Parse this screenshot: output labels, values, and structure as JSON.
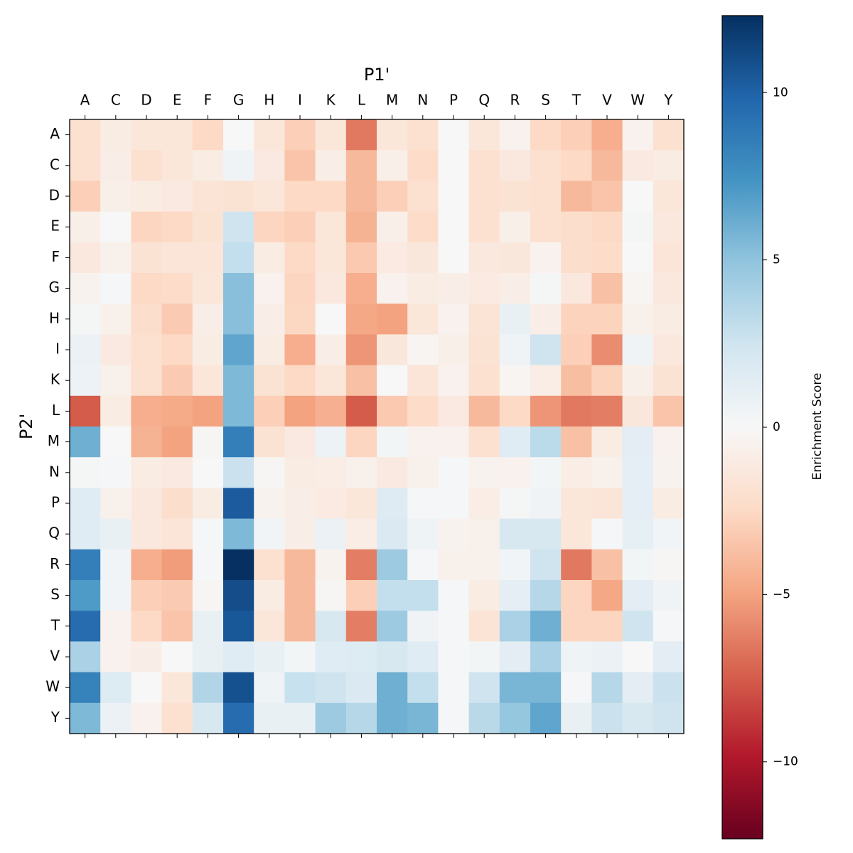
{
  "chart_data": {
    "type": "heatmap",
    "x_label": "P1'",
    "y_label": "P2'",
    "colorbar_label": "Enrichment Score",
    "colormap": "RdBu",
    "x_categories": [
      "A",
      "C",
      "D",
      "E",
      "F",
      "G",
      "H",
      "I",
      "K",
      "L",
      "M",
      "N",
      "P",
      "Q",
      "R",
      "S",
      "T",
      "V",
      "W",
      "Y"
    ],
    "y_categories": [
      "A",
      "C",
      "D",
      "E",
      "F",
      "G",
      "H",
      "I",
      "K",
      "L",
      "M",
      "N",
      "P",
      "Q",
      "R",
      "S",
      "T",
      "V",
      "W",
      "Y"
    ],
    "values": [
      [
        -2,
        -1,
        -1.5,
        -1.5,
        -2.5,
        0,
        -1.5,
        -3,
        -1.5,
        -6.5,
        -1.5,
        -2,
        0,
        -1.5,
        -0.5,
        -2.5,
        -3,
        -4.5,
        -0.5,
        -2
      ],
      [
        -2,
        -0.8,
        -2,
        -1.5,
        -1,
        0.5,
        -1.2,
        -3.5,
        -0.8,
        -4,
        -0.7,
        -2.3,
        0,
        -2,
        -1.3,
        -2,
        -2.5,
        -4,
        -1.2,
        -1
      ],
      [
        -3,
        -0.7,
        -1,
        -1.2,
        -1.7,
        -1.8,
        -1.5,
        -2.5,
        -2.5,
        -4,
        -3,
        -2,
        0,
        -2,
        -1.8,
        -2,
        -4,
        -3.5,
        0,
        -1.5
      ],
      [
        -0.7,
        0,
        -2.7,
        -2.5,
        -1.8,
        2.5,
        -2.7,
        -3,
        -1.5,
        -4.3,
        -0.7,
        -2.3,
        0,
        -2,
        -0.7,
        -2,
        -2.2,
        -2.5,
        0.2,
        -1.3
      ],
      [
        -1.3,
        -0.6,
        -1.8,
        -1.6,
        -1.6,
        3,
        -1,
        -2.5,
        -1.5,
        -3.3,
        -1.1,
        -1.4,
        0,
        -1.3,
        -1.4,
        -0.5,
        -2.2,
        -2.3,
        0,
        -1.6
      ],
      [
        -0.4,
        0.1,
        -2.5,
        -2.3,
        -1.5,
        5.2,
        -0.5,
        -2.7,
        -1.3,
        -4.5,
        -0.5,
        -1,
        -0.8,
        -1.1,
        -0.8,
        0.2,
        -1.3,
        -3.7,
        -0.3,
        -1.3
      ],
      [
        0.2,
        -0.6,
        -2.2,
        -3.2,
        -0.8,
        5.2,
        -0.8,
        -2.6,
        0,
        -4.8,
        -5,
        -1.5,
        -0.5,
        -1.7,
        1,
        -0.8,
        -2.8,
        -2.8,
        -0.6,
        -1
      ],
      [
        0.8,
        -1.2,
        -2,
        -2.5,
        -1,
        6.5,
        -1,
        -4.5,
        -0.8,
        -5.5,
        -1.4,
        -0.3,
        -0.7,
        -1.8,
        0.5,
        2.5,
        -3,
        -5.8,
        0.5,
        -1.3
      ],
      [
        0.7,
        -0.6,
        -2,
        -3.2,
        -1.5,
        5.5,
        -1.8,
        -2.5,
        -1.5,
        -3.7,
        0,
        -1.6,
        -0.5,
        -2,
        -0.3,
        -0.9,
        -3.8,
        -2.8,
        -0.7,
        -1.8
      ],
      [
        -7.5,
        -1,
        -4.5,
        -4.7,
        -5,
        5.5,
        -3,
        -5,
        -4.4,
        -7.5,
        -3.3,
        -2.3,
        -1.2,
        -4,
        -2.5,
        -5.5,
        -6.5,
        -6.3,
        -1.4,
        -3.5
      ],
      [
        6,
        0,
        -4.3,
        -5,
        -0.2,
        8.5,
        -1.8,
        -1.2,
        0.7,
        -2.7,
        0.3,
        -0.5,
        -0.5,
        -2,
        1.5,
        3.3,
        -3.7,
        -1,
        1.3,
        -0.5
      ],
      [
        0.2,
        0.1,
        -1,
        -1.2,
        0,
        2.7,
        -0.2,
        -1,
        -0.9,
        -0.6,
        -1.2,
        -0.6,
        0.1,
        -0.4,
        -0.5,
        0.3,
        -0.9,
        -0.6,
        1.2,
        -0.4
      ],
      [
        1.5,
        -0.6,
        -1.3,
        -2.2,
        -1,
        10.3,
        -0.4,
        -0.8,
        -1.1,
        -1.5,
        1.6,
        0.1,
        0.1,
        -0.9,
        0.2,
        0.5,
        -1.5,
        -1.6,
        1.2,
        -1
      ],
      [
        1.5,
        1,
        -1.3,
        -1.6,
        0.1,
        5.5,
        0.4,
        -0.8,
        0.8,
        -0.9,
        1.8,
        0.6,
        -0.4,
        -0.6,
        2,
        2,
        -1.5,
        0.1,
        1.1,
        0.4
      ],
      [
        8.5,
        0.4,
        -4.5,
        -5.2,
        0.1,
        12.3,
        -2,
        -4,
        -0.4,
        -6.3,
        4.5,
        0.1,
        -0.6,
        -0.6,
        0.4,
        2.5,
        -6.5,
        -3.7,
        0.3,
        -0.2
      ],
      [
        7,
        0.4,
        -3,
        -3.2,
        -0.2,
        11,
        -1,
        -4,
        -0.2,
        -3,
        3,
        3,
        0.1,
        -1,
        1.2,
        3.5,
        -2.7,
        -4.8,
        1.3,
        0.5
      ],
      [
        9.5,
        -0.5,
        -2.5,
        -3.5,
        1,
        10.5,
        -1.5,
        -4,
        2,
        -6.3,
        4.5,
        0.5,
        0.1,
        -1.7,
        4,
        6,
        -2.7,
        -2.7,
        2.5,
        0.1
      ],
      [
        4,
        -0.5,
        -0.8,
        0,
        1,
        1.5,
        1,
        0.3,
        1.5,
        1.7,
        2,
        1.5,
        0.1,
        0.3,
        1.3,
        4,
        0.6,
        0.8,
        0,
        1.3
      ],
      [
        8.3,
        1.7,
        0,
        -1.5,
        3.7,
        10.8,
        0.6,
        2.8,
        2.5,
        1.8,
        6,
        3,
        0.1,
        2.5,
        5.7,
        5.7,
        0.1,
        3.5,
        1.3,
        2.7
      ],
      [
        5.5,
        0.8,
        -0.5,
        -2,
        2,
        9.5,
        1,
        1,
        4.5,
        3.5,
        6,
        5.7,
        0.1,
        3.4,
        4.8,
        6.5,
        1,
        2.7,
        2,
        2.5
      ]
    ],
    "zlim": [
      -12.3,
      12.3
    ],
    "zticks": [
      {
        "value": -10,
        "label": "−10"
      },
      {
        "value": -5,
        "label": "−5"
      },
      0,
      5,
      10
    ]
  }
}
